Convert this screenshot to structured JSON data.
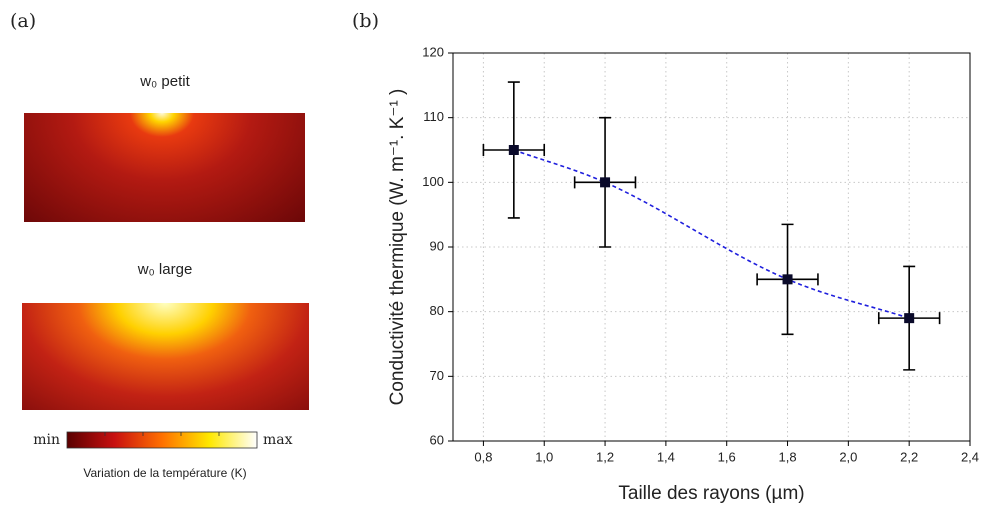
{
  "panel_a": {
    "label": "(a)",
    "maps": [
      {
        "title": "w₀ petit"
      },
      {
        "title": "w₀ large"
      }
    ],
    "colorbar": {
      "min": "min",
      "max": "max",
      "label": "Variation de la température (K)"
    }
  },
  "chart_data": {
    "type": "scatter",
    "panel_label": "(b)",
    "xlabel": "Taille des rayons (µm)",
    "ylabel": "Conductivité thermique (W. m⁻¹. K⁻¹ )",
    "x": [
      0.9,
      1.2,
      1.8,
      2.2
    ],
    "values": [
      105,
      100,
      85,
      79
    ],
    "x_errors": [
      0.1,
      0.1,
      0.1,
      0.1
    ],
    "y_errors": [
      10.5,
      10,
      8.5,
      8
    ],
    "color": "#0a0a2a",
    "line_color": "#1f1fdd",
    "line_style": "dashed",
    "xlim": [
      0.7,
      2.4
    ],
    "ylim": [
      60,
      120
    ],
    "xticks": [
      {
        "value": 0.8,
        "label": "0,8"
      },
      {
        "value": 1.0,
        "label": "1,0"
      },
      {
        "value": 1.2,
        "label": "1,2"
      },
      {
        "value": 1.4,
        "label": "1,4"
      },
      {
        "value": 1.6,
        "label": "1,6"
      },
      {
        "value": 1.8,
        "label": "1,8"
      },
      {
        "value": 2.0,
        "label": "2,0"
      },
      {
        "value": 2.2,
        "label": "2,2"
      },
      {
        "value": 2.4,
        "label": "2,4"
      }
    ],
    "yticks": [
      60,
      70,
      80,
      90,
      100,
      110,
      120
    ],
    "grid": true
  }
}
